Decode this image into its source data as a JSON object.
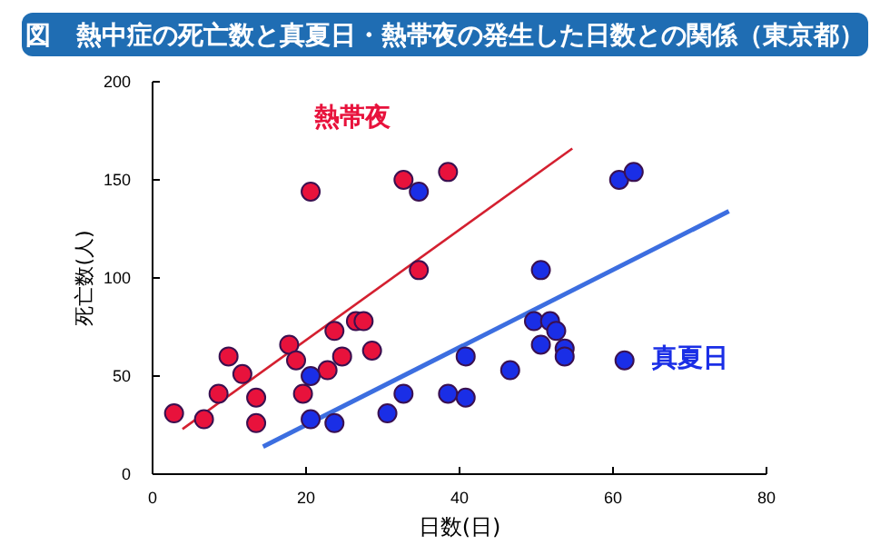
{
  "chart_data": {
    "type": "scatter",
    "title": "図　熱中症の死亡数と真夏日・熱帯夜の発生した日数との関係（東京都）",
    "xlabel": "日数(日)",
    "ylabel": "死亡数(人)",
    "xlim": [
      0,
      80
    ],
    "ylim": [
      0,
      200
    ],
    "xticks": [
      0,
      20,
      40,
      60,
      80
    ],
    "yticks": [
      0,
      50,
      100,
      150,
      200
    ],
    "marker": "circle",
    "series": [
      {
        "name": "熱帯夜",
        "color": "#e8123c",
        "x": [
          2.8,
          6.7,
          8.6,
          9.9,
          11.7,
          13.5,
          13.5,
          17.8,
          18.7,
          19.6,
          20.6,
          22.8,
          23.7,
          24.7,
          26.5,
          27.5,
          28.6,
          32.7,
          34.7,
          38.5
        ],
        "values": [
          31,
          28,
          41,
          60,
          51,
          39,
          26,
          66,
          58,
          41,
          144,
          53,
          73,
          60,
          78,
          78,
          63,
          150,
          104,
          154
        ]
      },
      {
        "name": "真夏日",
        "color": "#1a2ee6",
        "x": [
          20.6,
          20.6,
          23.7,
          30.6,
          32.7,
          34.7,
          38.5,
          40.8,
          40.8,
          46.6,
          49.7,
          50.6,
          51.8,
          52.6,
          50.6,
          53.7,
          53.7,
          60.8,
          62.7,
          61.5
        ],
        "values": [
          50,
          28,
          26,
          31,
          41,
          144,
          41,
          39,
          60,
          53,
          78,
          104,
          78,
          73,
          66,
          64,
          60,
          150,
          154,
          58
        ]
      },
      {
        "type": "line",
        "marker": "none",
        "color": "#d42030",
        "x": [
          3.9,
          54.7
        ],
        "values": [
          23,
          166
        ]
      },
      {
        "type": "line",
        "marker": "none",
        "color": "#3c6ee0",
        "x": [
          14.4,
          75.1
        ],
        "values": [
          14,
          134
        ]
      }
    ]
  }
}
